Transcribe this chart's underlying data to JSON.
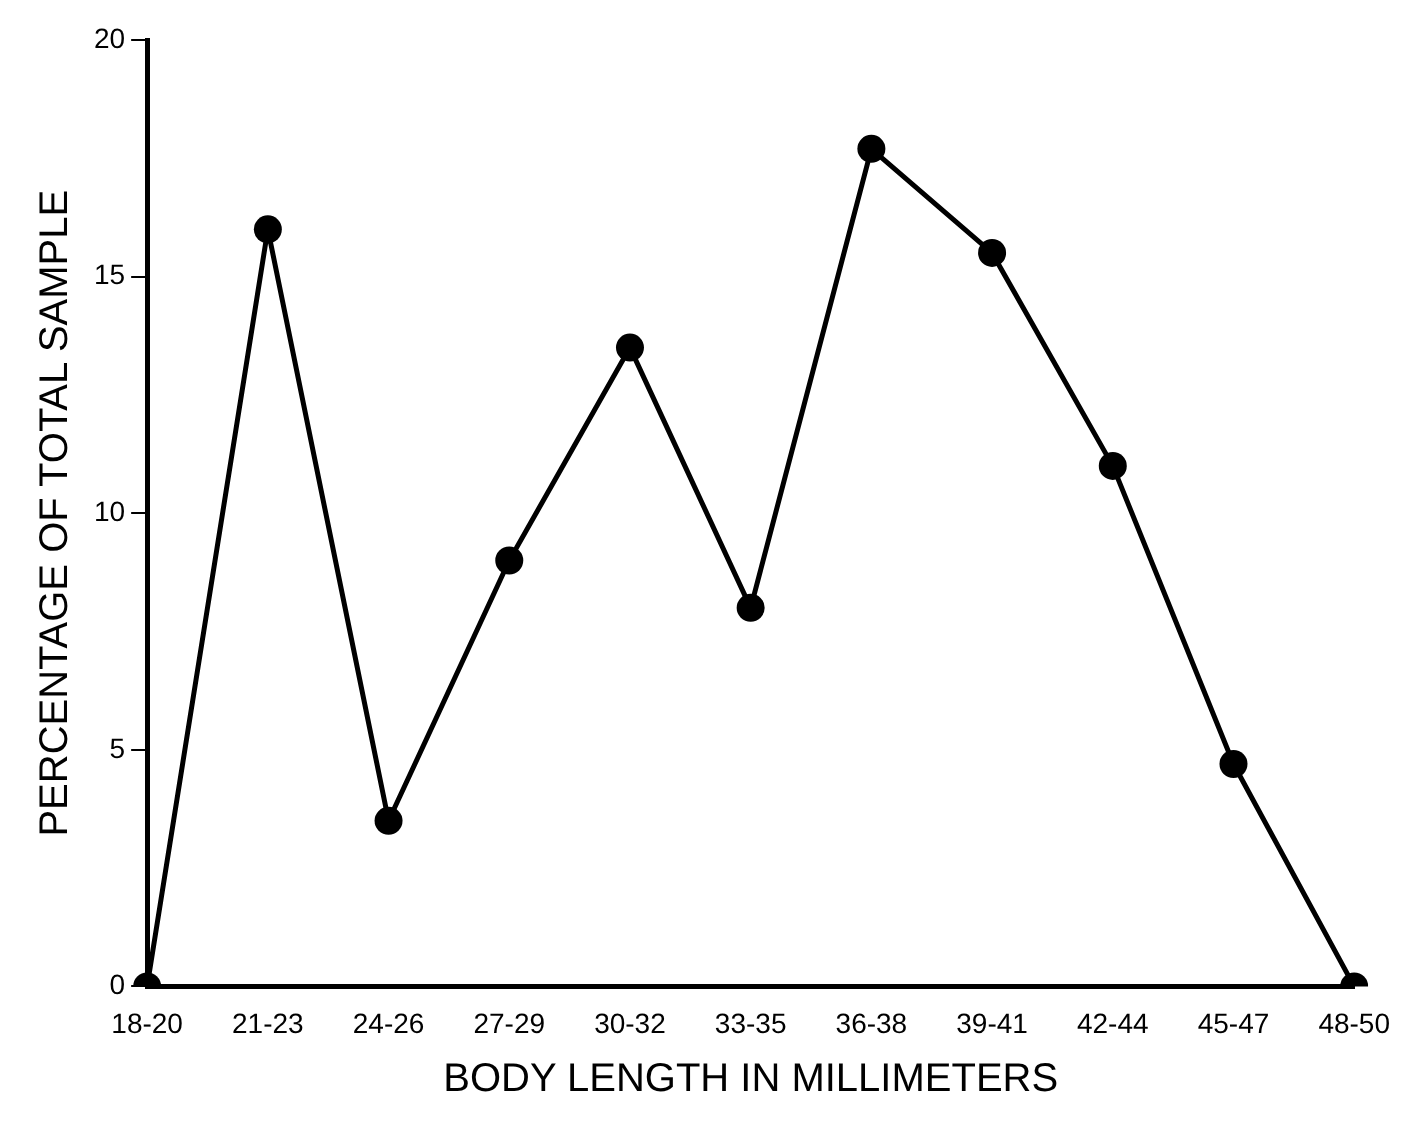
{
  "chart_data": {
    "type": "line",
    "xlabel": "BODY LENGTH IN MILLIMETERS",
    "ylabel": "PERCENTAGE OF TOTAL SAMPLE",
    "categories": [
      "18-20",
      "21-23",
      "24-26",
      "27-29",
      "30-32",
      "33-35",
      "36-38",
      "39-41",
      "42-44",
      "45-47",
      "48-50"
    ],
    "series": [
      {
        "color": "#000000",
        "values": [
          0,
          16,
          3.5,
          9,
          13.5,
          8,
          17.7,
          15.5,
          11,
          4.7,
          0
        ]
      }
    ],
    "ylim": [
      0,
      20
    ],
    "yticks": [
      0,
      5,
      10,
      15,
      20
    ],
    "grid": false,
    "legend": false,
    "marker": "circle",
    "line_style": "solid"
  }
}
